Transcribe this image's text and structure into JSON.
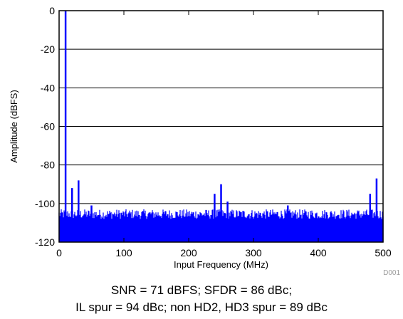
{
  "chart_data": {
    "type": "line",
    "xlabel": "Input Frequency (MHz)",
    "ylabel": "Amplitude (dBFS)",
    "xlim": [
      0,
      500
    ],
    "ylim": [
      -120,
      0
    ],
    "xticks": [
      0,
      100,
      200,
      300,
      400,
      500
    ],
    "yticks": [
      0,
      -20,
      -40,
      -60,
      -80,
      -100,
      -120
    ],
    "grid": "horizontal",
    "series": [
      {
        "color": "#0000ff",
        "noise_floor": {
          "from": -120,
          "to_min": -108,
          "to_max": -103,
          "x_range": [
            0,
            500
          ]
        },
        "spurs": [
          {
            "x": 10,
            "y": 0
          },
          {
            "x": 20,
            "y": -92
          },
          {
            "x": 30,
            "y": -88
          },
          {
            "x": 50,
            "y": -101
          },
          {
            "x": 240,
            "y": -95
          },
          {
            "x": 250,
            "y": -90
          },
          {
            "x": 260,
            "y": -99
          },
          {
            "x": 353,
            "y": -101
          },
          {
            "x": 480,
            "y": -95
          },
          {
            "x": 490,
            "y": -87
          }
        ]
      }
    ]
  },
  "figure_id": "D001",
  "caption": {
    "line1": "SNR = 71 dBFS; SFDR = 86 dBc;",
    "line2": "IL spur = 94 dBc; non HD2, HD3 spur = 89 dBc"
  }
}
